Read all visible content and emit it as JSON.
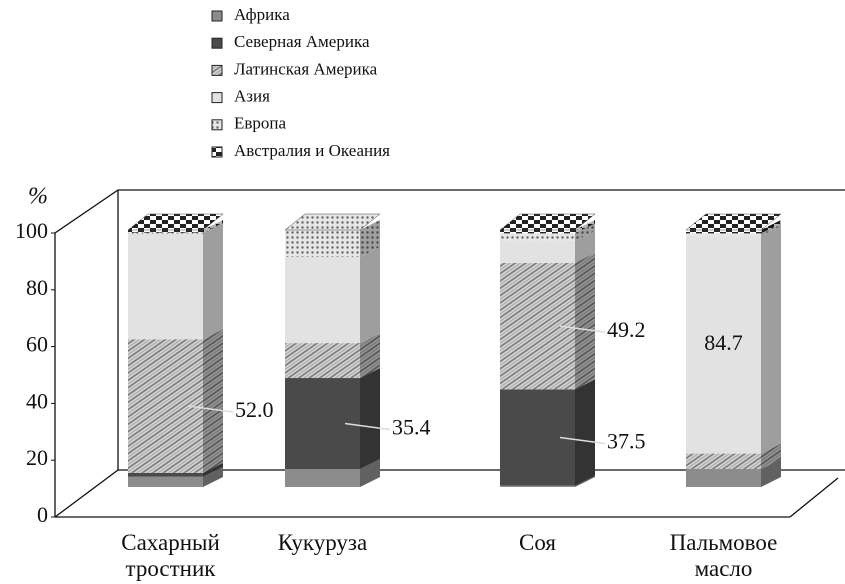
{
  "chart_data": {
    "type": "bar3d_stacked",
    "y_label": "%",
    "categories": [
      "Сахарный тростник",
      "Кукуруза",
      "Соя",
      "Пальмовое масло"
    ],
    "series": [
      {
        "name": "Африка",
        "color": "#8c8c8c",
        "values": [
          4,
          7,
          0.5,
          7
        ]
      },
      {
        "name": "Северная Америка",
        "color": "#4a4a4a",
        "values": [
          1.5,
          35.4,
          37.5,
          0
        ],
        "value_labels": [
          null,
          "35.4",
          "37.5",
          null
        ]
      },
      {
        "name": "Латинская Америка",
        "color": "#b0b0b0",
        "pattern": "hatch",
        "values": [
          52.0,
          13.6,
          49.2,
          6
        ],
        "value_labels": [
          "52.0",
          null,
          "49.2",
          null
        ]
      },
      {
        "name": "Азия",
        "color": "#e2e2e2",
        "values": [
          41,
          33.5,
          8.5,
          84.7
        ],
        "value_labels": [
          null,
          null,
          null,
          "84.7"
        ]
      },
      {
        "name": "Европа",
        "color": "#d8d8d8",
        "pattern": "dots",
        "values": [
          0.5,
          10.5,
          3,
          1
        ]
      },
      {
        "name": "Австралия и Океания",
        "color": "#222222",
        "pattern": "checker",
        "values": [
          1,
          0,
          1.3,
          1.3
        ]
      }
    ],
    "ylim": [
      0,
      100
    ],
    "yticks": [
      0,
      20,
      40,
      60,
      80,
      100
    ],
    "legend": "top"
  }
}
